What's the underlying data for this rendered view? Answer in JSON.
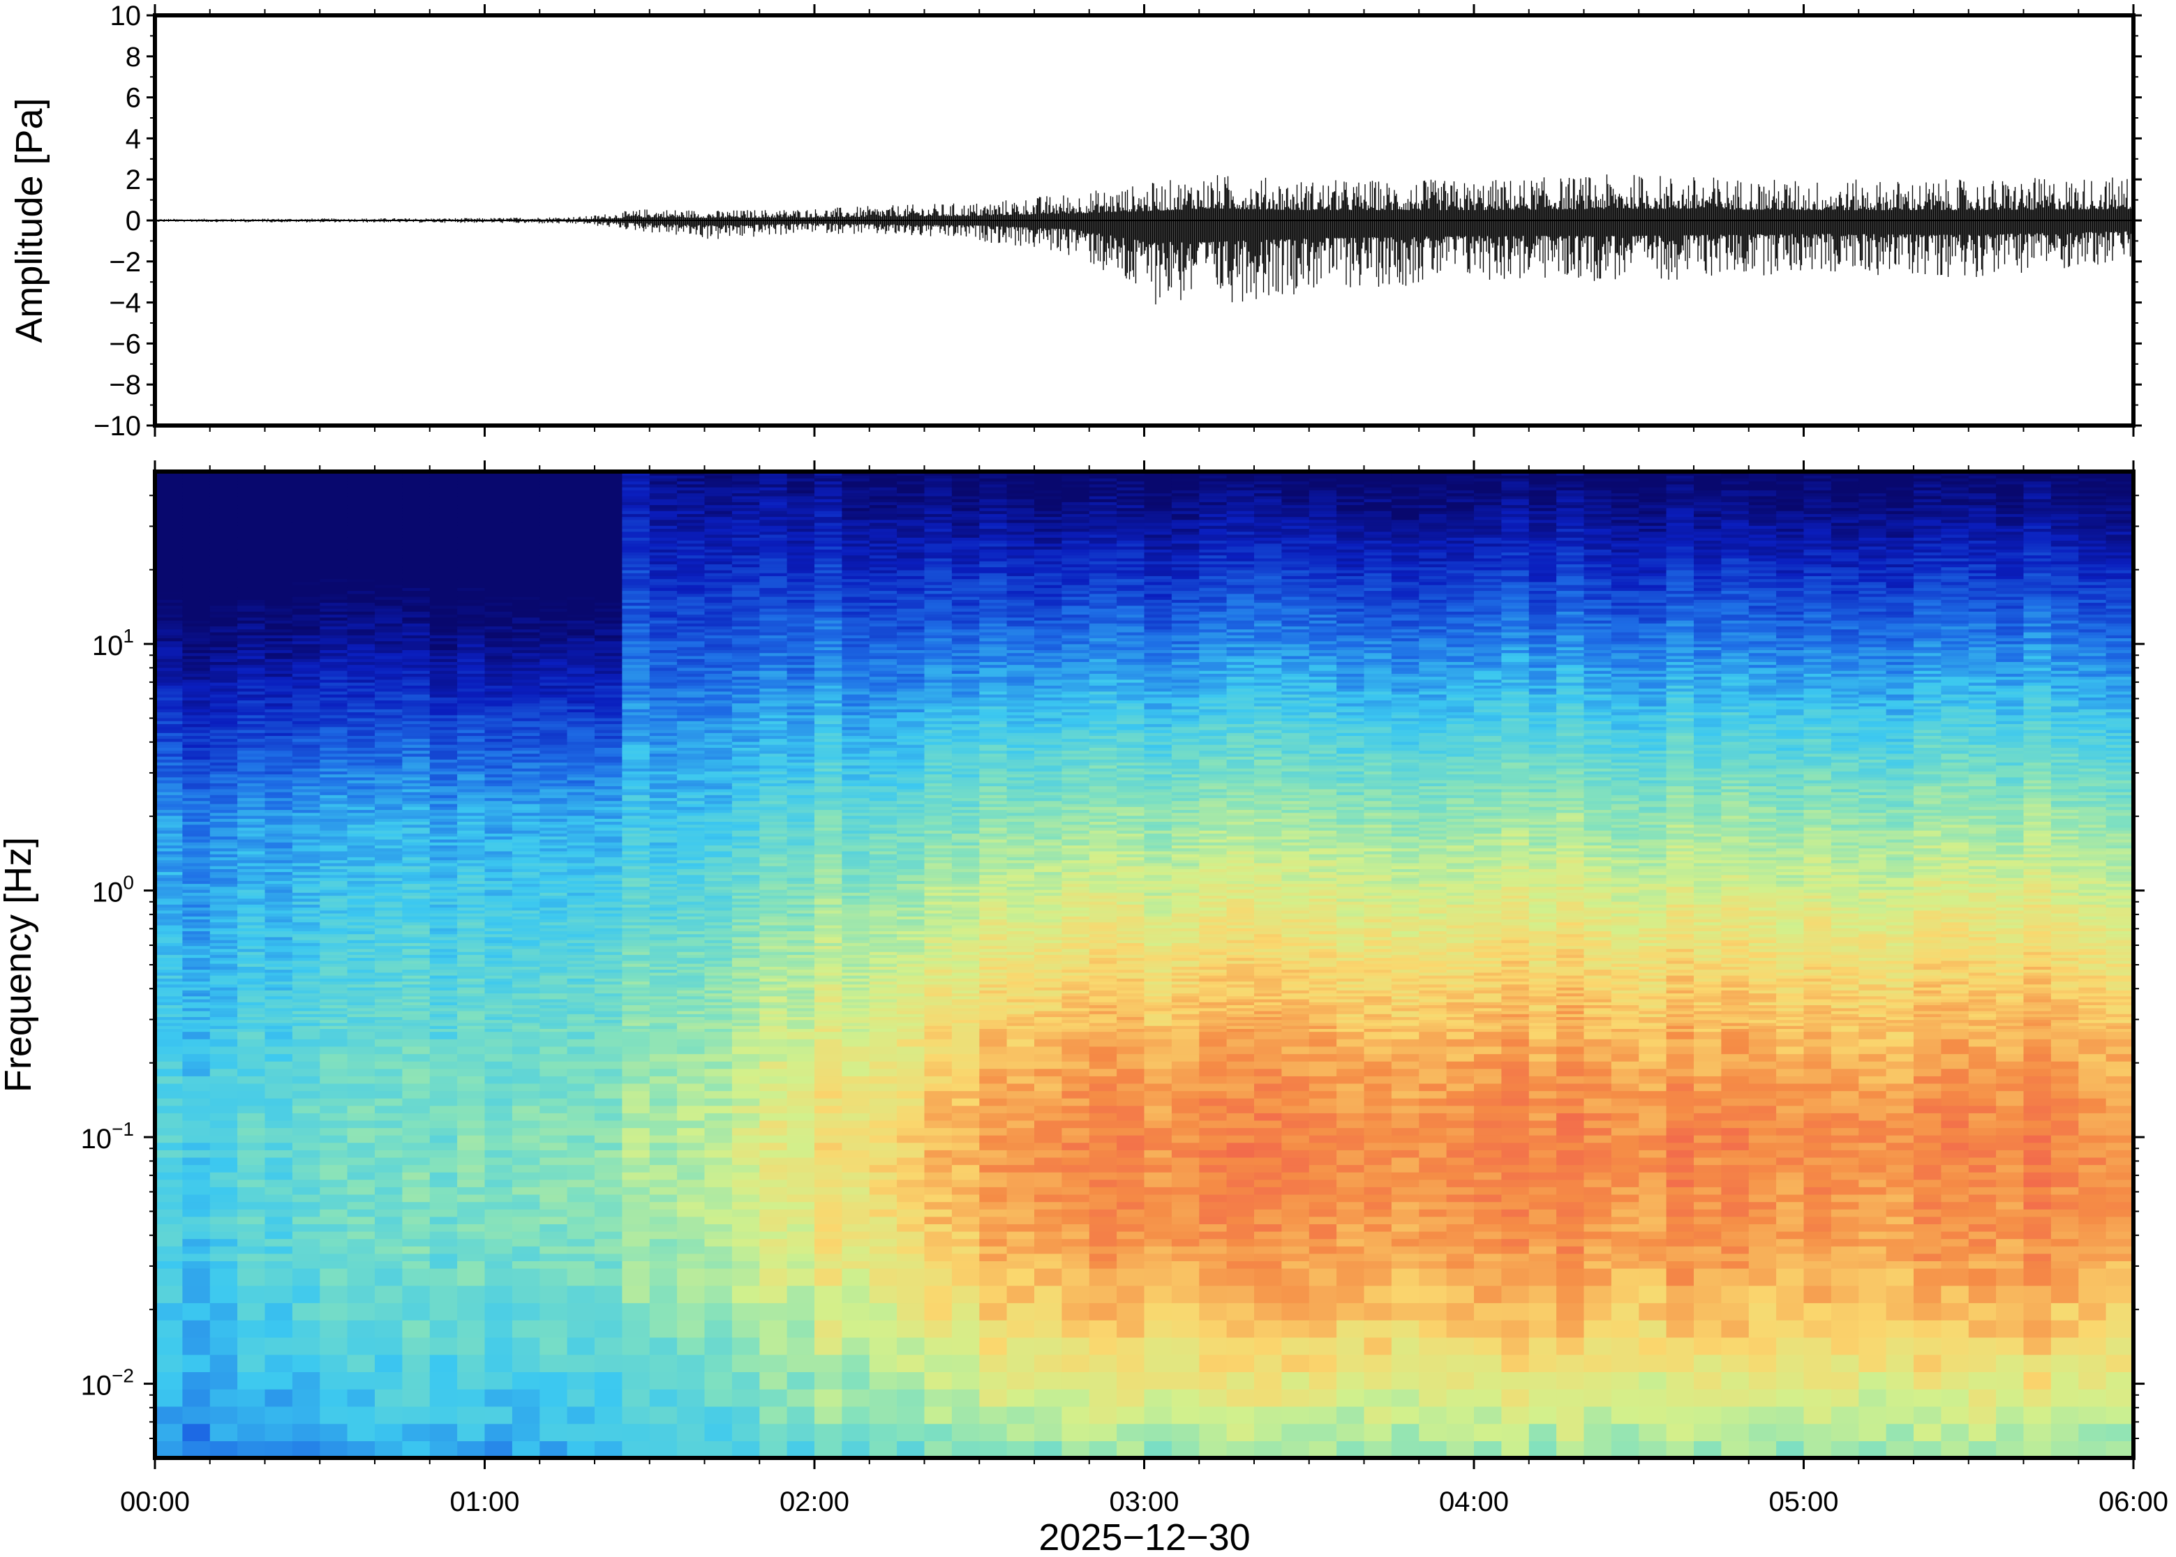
{
  "chart_data": [
    {
      "type": "line",
      "ylabel": "Amplitude [Pa]",
      "ylim": [
        -10,
        10
      ],
      "xlim": [
        "00:00",
        "06:00"
      ],
      "ytick_labels": [
        "10",
        "8",
        "6",
        "4",
        "2",
        "0",
        "−2",
        "−4",
        "−6",
        "−8",
        "−10"
      ],
      "ytick_values": [
        10,
        8,
        6,
        4,
        2,
        0,
        -2,
        -4,
        -6,
        -8,
        -10
      ],
      "series": [
        {
          "x_hours": [
            0,
            0.5,
            1.0,
            1.3,
            1.5,
            1.7,
            2.0,
            2.5,
            2.8,
            3.0,
            3.2,
            3.5,
            4.0,
            4.5,
            5.0,
            5.5,
            6.0
          ],
          "amplitude_max": [
            0.08,
            0.1,
            0.12,
            0.2,
            0.6,
            0.5,
            0.6,
            0.9,
            1.4,
            1.8,
            2.3,
            2.0,
            2.0,
            2.3,
            2.0,
            2.0,
            2.2
          ],
          "amplitude_min": [
            -0.08,
            -0.1,
            -0.12,
            -0.2,
            -0.6,
            -1.0,
            -0.6,
            -1.0,
            -1.8,
            -4.1,
            -4.2,
            -3.5,
            -3.0,
            -3.0,
            -2.6,
            -2.8,
            -2.1
          ]
        }
      ]
    },
    {
      "type": "heatmap",
      "ylabel": "Frequency [Hz]",
      "xlabel": "2025−12−30",
      "yscale": "log",
      "ylim": [
        0.005,
        50
      ],
      "xlim": [
        "00:00",
        "06:00"
      ],
      "ytick_labels": [
        {
          "base": "10",
          "exp": "1",
          "value": 10
        },
        {
          "base": "10",
          "exp": "0",
          "value": 1
        },
        {
          "base": "10",
          "exp": "−1",
          "value": 0.1
        },
        {
          "base": "10",
          "exp": "−2",
          "value": 0.01
        }
      ],
      "xtick_labels": [
        "00:00",
        "01:00",
        "02:00",
        "03:00",
        "04:00",
        "05:00",
        "06:00"
      ],
      "colormap": "jet",
      "peak_band_hz": [
        0.03,
        0.3
      ],
      "time_evolution_hours": [
        0,
        1.4,
        2.7,
        6.0
      ],
      "relative_power": [
        0.3,
        0.45,
        0.85,
        0.85
      ]
    }
  ]
}
